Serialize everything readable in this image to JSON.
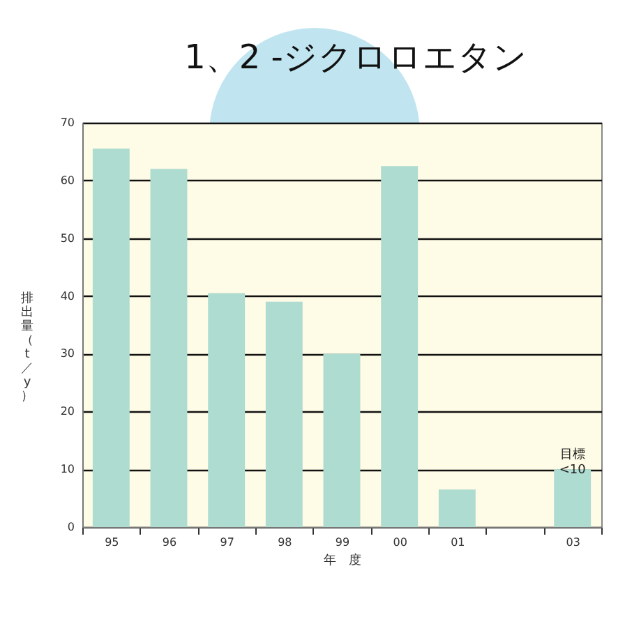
{
  "chart_data": {
    "type": "bar",
    "title": "1、2 -ジクロロエタン",
    "xlabel": "年　度",
    "ylabel": "排出量（t／y）",
    "categories": [
      "95",
      "96",
      "97",
      "98",
      "99",
      "00",
      "01",
      null,
      "03"
    ],
    "values": [
      65.5,
      62,
      40.5,
      39,
      30,
      62.5,
      6.5,
      null,
      10
    ],
    "color": "#aedcd0",
    "ylim": [
      0,
      70
    ],
    "yticks": [
      0,
      10,
      20,
      30,
      40,
      50,
      60,
      70
    ],
    "grid": "y",
    "annotations": [
      {
        "text": "目標\n<10",
        "x": "03",
        "y": 10
      }
    ]
  }
}
